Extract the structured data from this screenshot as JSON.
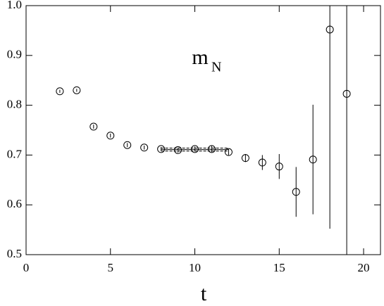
{
  "chart_data": {
    "type": "scatter",
    "annotation": {
      "text": "m",
      "subscript": "N"
    },
    "xlabel": "t",
    "x": [
      2,
      3,
      4,
      5,
      6,
      7,
      8,
      9,
      10,
      11,
      12,
      13,
      14,
      15,
      16,
      17,
      18,
      19
    ],
    "values": [
      0.828,
      0.83,
      0.757,
      0.739,
      0.72,
      0.715,
      0.712,
      0.71,
      0.712,
      0.712,
      0.706,
      0.694,
      0.685,
      0.677,
      0.626,
      0.691,
      0.952,
      0.823
    ],
    "errors": [
      0.003,
      0.003,
      0.004,
      0.004,
      0.004,
      0.004,
      0.004,
      0.005,
      0.005,
      0.006,
      0.006,
      0.008,
      0.015,
      0.025,
      0.05,
      0.11,
      0.4,
      0.4
    ],
    "color": "#000000",
    "fit": {
      "x": [
        8,
        12
      ],
      "value": 0.711,
      "error": 0.003
    },
    "xlim": [
      0,
      21
    ],
    "xticks": [
      0,
      5,
      10,
      15,
      20
    ],
    "ylim": [
      0.5,
      1.0
    ],
    "yticks": [
      0.5,
      0.6,
      0.7,
      0.8,
      0.9,
      {
        "value": 1.0,
        "label": "1.0"
      }
    ]
  }
}
